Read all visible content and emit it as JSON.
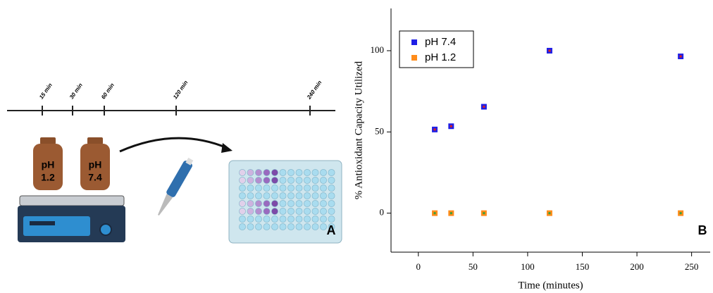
{
  "panel_a": {
    "label": "A",
    "timeline": [
      "15 min",
      "30 min",
      "60 min",
      "120 min",
      "240 min"
    ],
    "bottles": [
      [
        "pH",
        "1.2"
      ],
      [
        "pH",
        "7.4"
      ]
    ]
  },
  "chart_data": {
    "type": "scatter",
    "panel_label": "B",
    "x_label": "Time (minutes)",
    "y_label": "% Antioxidant Capacity Utilized",
    "x": [
      15,
      30,
      60,
      120,
      240
    ],
    "series": [
      {
        "name": "pH 7.4",
        "color": "#1f1fe6",
        "values": [
          51.5,
          53.5,
          65.5,
          100,
          96.5
        ]
      },
      {
        "name": "pH 1.2",
        "color": "#ff8c1a",
        "values": [
          0,
          0,
          0,
          0,
          0
        ]
      }
    ],
    "xlim": [
      -25,
      267
    ],
    "ylim": [
      -24,
      126
    ],
    "xticks": [
      0,
      50,
      100,
      150,
      200,
      250
    ],
    "yticks": [
      0,
      50,
      100
    ]
  }
}
